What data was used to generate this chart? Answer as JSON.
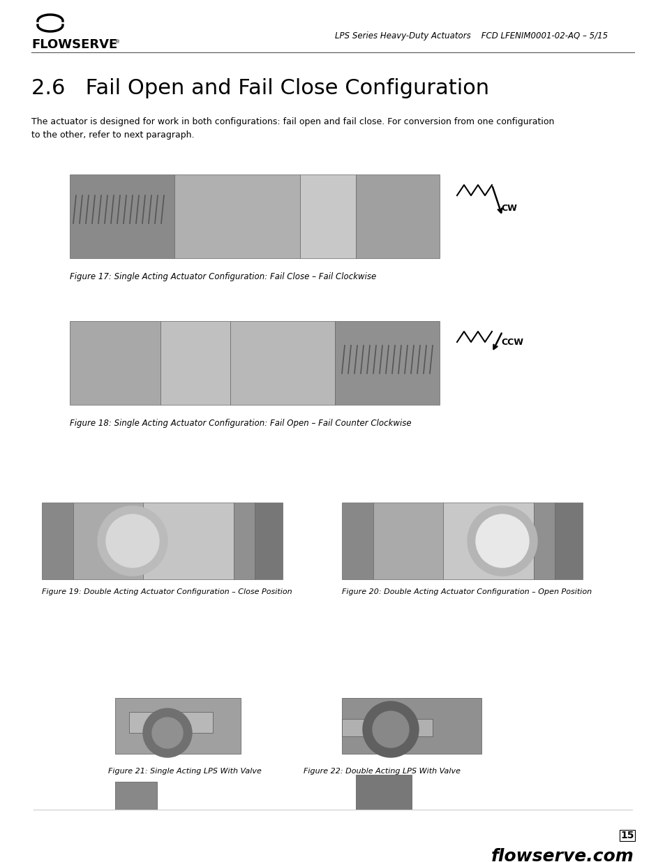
{
  "bg_color": "#ffffff",
  "header_line_color": "#000000",
  "logo_text": "FLOWSERVE",
  "header_right_text": "LPS Series Heavy-Duty Actuators    FCD LFENIM0001-02-AQ – 5/15",
  "section_title": "2.6   Fail Open and Fail Close Configuration",
  "body_text": "The actuator is designed for work in both configurations: fail open and fail close. For conversion from one configuration\nto the other, refer to next paragraph.",
  "fig17_caption": "Figure 17: Single Acting Actuator Configuration: Fail Close – Fail Clockwise",
  "fig18_caption": "Figure 18: Single Acting Actuator Configuration: Fail Open – Fail Counter Clockwise",
  "fig19_caption": "Figure 19: Double Acting Actuator Configuration – Close Position",
  "fig20_caption": "Figure 20: Double Acting Actuator Configuration – Open Position",
  "fig21_caption": "Figure 21: Single Acting LPS With Valve",
  "fig22_caption": "Figure 22: Double Acting LPS With Valve",
  "page_number": "15",
  "footer_text": "flowserve.com",
  "cw_label": "CW",
  "ccw_label": "CCW"
}
